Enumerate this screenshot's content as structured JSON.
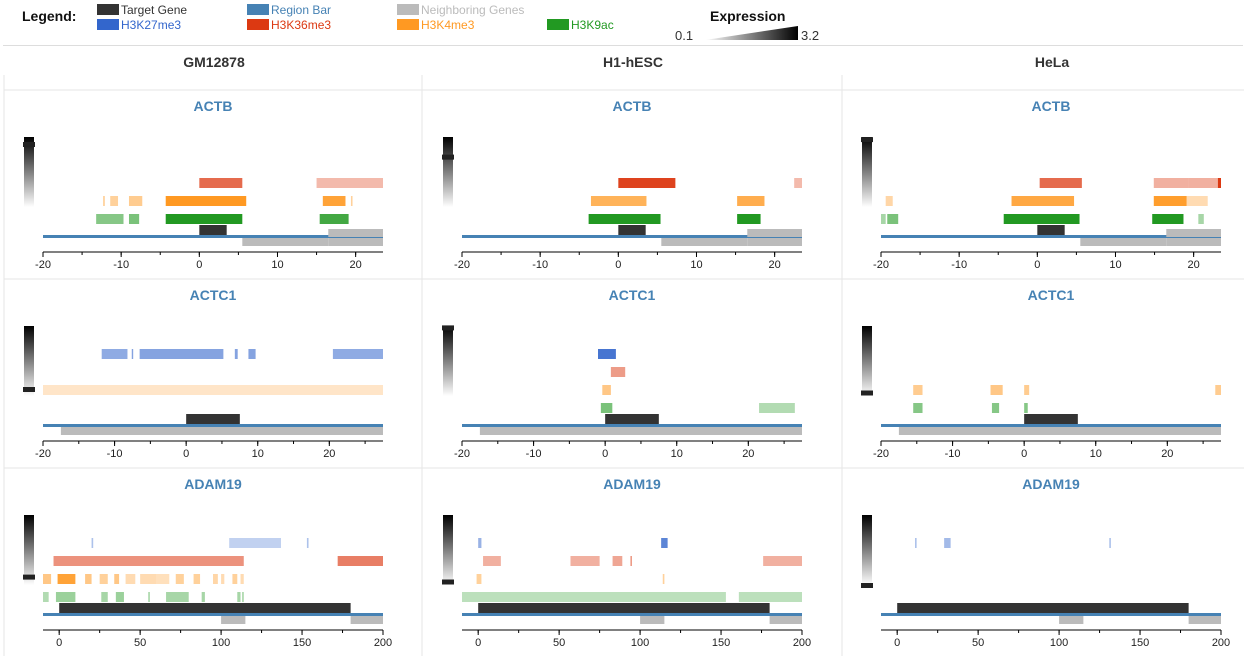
{
  "legend": {
    "title": "Legend:",
    "items": [
      {
        "label": "Target Gene",
        "color": "#333333",
        "text_color": "#333333"
      },
      {
        "label": "Region Bar",
        "color": "#4682b4",
        "text_color": "#4682b4"
      },
      {
        "label": "Neighboring Genes",
        "color": "#bbbbbb",
        "text_color": "#bbbbbb"
      },
      {
        "label": "H3K27me3",
        "color": "#3366cc",
        "text_color": "#3366cc"
      },
      {
        "label": "H3K36me3",
        "color": "#dc3912",
        "text_color": "#dc3912"
      },
      {
        "label": "H3K4me3",
        "color": "#ff9922",
        "text_color": "#ff9922"
      },
      {
        "label": "H3K9ac",
        "color": "#229922",
        "text_color": "#229922"
      }
    ]
  },
  "expression": {
    "title": "Expression",
    "min": "0.1",
    "max": "3.2"
  },
  "columns": [
    "GM12878",
    "H1-hESC",
    "HeLa"
  ],
  "chart_data": {
    "type": "bar",
    "mark_colors": {
      "H3K27me3": "#3366cc",
      "H3K36me3": "#dc3912",
      "H3K4me3": "#ff9922",
      "H3K9ac": "#229922",
      "target": "#333333",
      "region": "#4682b4",
      "neighbor": "#bbbbbb"
    },
    "track_order": [
      "H3K27me3",
      "H3K36me3",
      "H3K4me3",
      "H3K9ac"
    ],
    "rows": [
      {
        "gene": "ACTB",
        "xlim": [
          -20,
          23.5
        ],
        "ticks": [
          -20,
          -10,
          0,
          10,
          20
        ],
        "target": [
          0,
          3.5
        ],
        "neighbors": [
          [
            5.5,
            16.5
          ],
          [
            16.5,
            23.5
          ]
        ],
        "cells": [
          {
            "cell": "GM12878",
            "expression": 0.9,
            "tracks": {
              "H3K27me3": [],
              "H3K36me3": [
                [
                  0,
                  5.5,
                  0.75
                ],
                [
                  15,
                  23.5,
                  0.35
                ]
              ],
              "H3K4me3": [
                [
                  -12.3,
                  -12.1,
                  0.5
                ],
                [
                  -11.4,
                  -10.4,
                  0.45
                ],
                [
                  -9,
                  -7.3,
                  0.5
                ],
                [
                  -4.3,
                  6,
                  1
                ],
                [
                  15.8,
                  18.7,
                  0.9
                ],
                [
                  19.4,
                  19.6,
                  0.45
                ]
              ],
              "H3K9ac": [
                [
                  -13.2,
                  -9.7,
                  0.55
                ],
                [
                  -9,
                  -7.7,
                  0.6
                ],
                [
                  -4.3,
                  5.5,
                  1
                ],
                [
                  15.4,
                  19.1,
                  0.85
                ]
              ]
            }
          },
          {
            "cell": "H1-hESC",
            "expression": 0.72,
            "tracks": {
              "H3K27me3": [],
              "H3K36me3": [
                [
                  0,
                  7.3,
                  0.95
                ],
                [
                  22.5,
                  23.5,
                  0.35
                ]
              ],
              "H3K4me3": [
                [
                  -3.5,
                  3.6,
                  0.75
                ],
                [
                  15.2,
                  18.7,
                  0.8
                ]
              ],
              "H3K9ac": [
                [
                  -3.8,
                  5.4,
                  1
                ],
                [
                  15.2,
                  18.2,
                  1
                ]
              ]
            }
          },
          {
            "cell": "HeLa",
            "expression": 0.97,
            "tracks": {
              "H3K27me3": [],
              "H3K36me3": [
                [
                  0.3,
                  5.7,
                  0.75
                ],
                [
                  14.9,
                  19.3,
                  0.4
                ],
                [
                  19.3,
                  23.1,
                  0.4
                ],
                [
                  23.1,
                  23.5,
                  1
                ]
              ],
              "H3K4me3": [
                [
                  -19.4,
                  -18.5,
                  0.4
                ],
                [
                  -3.3,
                  4.7,
                  0.85
                ],
                [
                  14.9,
                  19.1,
                  0.95
                ],
                [
                  19.1,
                  21.8,
                  0.35
                ]
              ],
              "H3K9ac": [
                [
                  -20,
                  -19.4,
                  0.4
                ],
                [
                  -19.2,
                  -17.8,
                  0.6
                ],
                [
                  -4.3,
                  5.4,
                  1
                ],
                [
                  14.7,
                  18.7,
                  1
                ],
                [
                  20.6,
                  21.3,
                  0.4
                ]
              ]
            }
          }
        ]
      },
      {
        "gene": "ACTC1",
        "xlim": [
          -20,
          27.5
        ],
        "ticks": [
          -20,
          -10,
          0,
          10,
          20
        ],
        "target": [
          0,
          7.5
        ],
        "neighbors": [
          [
            -17.5,
            27.5
          ]
        ],
        "cells": [
          {
            "cell": "GM12878",
            "expression": 0.1,
            "tracks": {
              "H3K27me3": [
                [
                  -11.8,
                  -8.2,
                  0.55
                ],
                [
                  -7.6,
                  -7.4,
                  0.6
                ],
                [
                  -6.5,
                  5.2,
                  0.6
                ],
                [
                  6.8,
                  7.2,
                  0.6
                ],
                [
                  8.7,
                  9.7,
                  0.6
                ],
                [
                  20.5,
                  27.5,
                  0.55
                ]
              ],
              "H3K36me3": [],
              "H3K4me3": [
                [
                  -20,
                  27.5,
                  0.25
                ]
              ],
              "H3K9ac": []
            }
          },
          {
            "cell": "H1-hESC",
            "expression": 0.98,
            "tracks": {
              "H3K27me3": [
                [
                  -1,
                  1.5,
                  0.9
                ]
              ],
              "H3K36me3": [
                [
                  0.8,
                  2.8,
                  0.5
                ]
              ],
              "H3K4me3": [
                [
                  -0.4,
                  0.8,
                  0.55
                ]
              ],
              "H3K9ac": [
                [
                  -0.6,
                  1,
                  0.6
                ],
                [
                  21.5,
                  26.5,
                  0.35
                ]
              ]
            }
          },
          {
            "cell": "HeLa",
            "expression": 0.05,
            "tracks": {
              "H3K27me3": [],
              "H3K36me3": [],
              "H3K4me3": [
                [
                  -15.5,
                  -14.2,
                  0.5
                ],
                [
                  -4.7,
                  -3,
                  0.55
                ],
                [
                  0,
                  0.7,
                  0.5
                ],
                [
                  26.7,
                  27.5,
                  0.5
                ]
              ],
              "H3K9ac": [
                [
                  -15.5,
                  -14.2,
                  0.55
                ],
                [
                  -4.5,
                  -3.5,
                  0.55
                ],
                [
                  0,
                  0.5,
                  0.55
                ]
              ]
            }
          }
        ]
      },
      {
        "gene": "ADAM19",
        "xlim": [
          -10,
          200
        ],
        "ticks": [
          0,
          50,
          100,
          150,
          200
        ],
        "target": [
          0,
          180
        ],
        "neighbors": [
          [
            100,
            115
          ],
          [
            180,
            200
          ]
        ],
        "cells": [
          {
            "cell": "GM12878",
            "expression": 0.12,
            "tracks": {
              "H3K27me3": [
                [
                  20,
                  21,
                  0.4
                ],
                [
                  105,
                  137,
                  0.3
                ],
                [
                  153,
                  154,
                  0.4
                ]
              ],
              "H3K36me3": [
                [
                  -3.5,
                  114,
                  0.55
                ],
                [
                  172,
                  200,
                  0.65
                ]
              ],
              "H3K4me3": [
                [
                  -10,
                  -5,
                  0.55
                ],
                [
                  -1,
                  10,
                  0.9
                ],
                [
                  16,
                  20,
                  0.55
                ],
                [
                  25,
                  30,
                  0.45
                ],
                [
                  34,
                  37,
                  0.55
                ],
                [
                  41,
                  47,
                  0.35
                ],
                [
                  50,
                  60,
                  0.35
                ],
                [
                  60,
                  68,
                  0.3
                ],
                [
                  72,
                  77,
                  0.45
                ],
                [
                  83,
                  87,
                  0.45
                ],
                [
                  95,
                  98,
                  0.4
                ],
                [
                  100,
                  102,
                  0.35
                ],
                [
                  107,
                  110,
                  0.45
                ],
                [
                  112,
                  114,
                  0.35
                ]
              ],
              "H3K9ac": [
                [
                  -10,
                  -6.5,
                  0.35
                ],
                [
                  -2,
                  10,
                  0.45
                ],
                [
                  26,
                  30,
                  0.4
                ],
                [
                  35,
                  40,
                  0.45
                ],
                [
                  55,
                  56,
                  0.4
                ],
                [
                  66,
                  80,
                  0.4
                ],
                [
                  88,
                  90,
                  0.4
                ],
                [
                  110,
                  112,
                  0.4
                ],
                [
                  113,
                  114,
                  0.4
                ]
              ]
            }
          },
          {
            "cell": "H1-hESC",
            "expression": 0.05,
            "tracks": {
              "H3K27me3": [
                [
                  0,
                  2,
                  0.5
                ],
                [
                  113,
                  117,
                  0.8
                ]
              ],
              "H3K36me3": [
                [
                  3,
                  14,
                  0.4
                ],
                [
                  57,
                  75,
                  0.4
                ],
                [
                  83,
                  89,
                  0.45
                ],
                [
                  94,
                  95,
                  0.5
                ],
                [
                  176,
                  200,
                  0.4
                ]
              ],
              "H3K4me3": [
                [
                  -1,
                  2,
                  0.45
                ],
                [
                  114,
                  115,
                  0.45
                ]
              ],
              "H3K9ac": [
                [
                  -10,
                  153,
                  0.3
                ],
                [
                  161,
                  200,
                  0.3
                ]
              ]
            }
          },
          {
            "cell": "HeLa",
            "expression": 0.0,
            "tracks": {
              "H3K27me3": [
                [
                  11,
                  12,
                  0.4
                ],
                [
                  29,
                  33,
                  0.45
                ],
                [
                  131,
                  132,
                  0.4
                ]
              ],
              "H3K36me3": [],
              "H3K4me3": [],
              "H3K9ac": []
            }
          }
        ]
      }
    ]
  }
}
